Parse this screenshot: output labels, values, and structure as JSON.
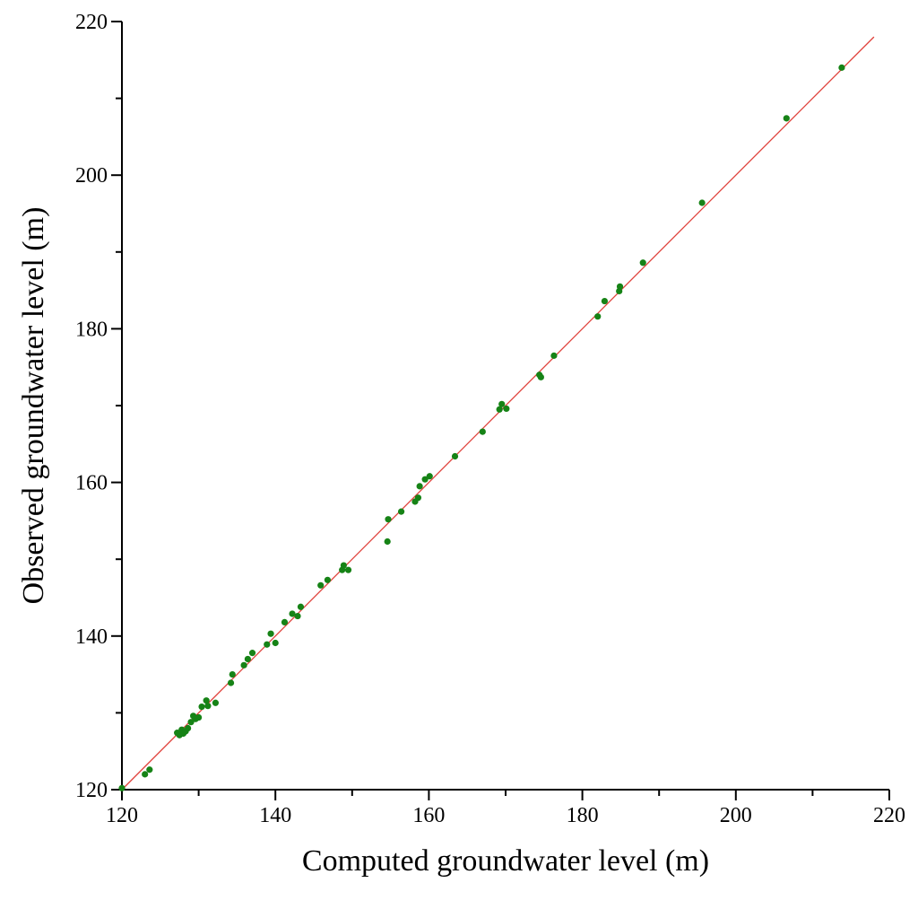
{
  "chart_data": {
    "type": "scatter",
    "title": "",
    "xlabel": "Computed groundwater level (m)",
    "ylabel": "Observed groundwater level (m)",
    "xlim": [
      120,
      220
    ],
    "ylim": [
      120,
      220
    ],
    "x_ticks": [
      "120",
      "140",
      "160",
      "180",
      "200",
      "220"
    ],
    "y_ticks": [
      "120",
      "140",
      "160",
      "180",
      "200",
      "220"
    ],
    "minor_tick_step": 10,
    "grid": false,
    "legend": "none",
    "reference_line": {
      "x": [
        120,
        218
      ],
      "y": [
        120,
        218
      ],
      "color": "#e0403a"
    },
    "point_color": "#168316",
    "series": [
      {
        "x": [
          120.0,
          123.0,
          123.6,
          127.2,
          127.5,
          127.8,
          128.0,
          128.3,
          128.6,
          129.0,
          129.3,
          129.6,
          130.0,
          130.4,
          131.0,
          131.2,
          132.2,
          134.2,
          134.4,
          135.9,
          136.4,
          137.0,
          138.9,
          139.4,
          140.0,
          141.2,
          142.2,
          142.9,
          143.3,
          145.9,
          146.8,
          148.7,
          148.9,
          149.5,
          154.6,
          154.7,
          156.4,
          158.2,
          158.6,
          158.8,
          159.5,
          160.1,
          163.4,
          167.0,
          169.2,
          169.5,
          170.1,
          174.4,
          174.6,
          176.3,
          182.0,
          182.9,
          184.8,
          184.9,
          187.9,
          195.6,
          206.6,
          213.8
        ],
        "y": [
          120.2,
          122.0,
          122.6,
          127.4,
          127.1,
          127.8,
          127.3,
          127.6,
          128.0,
          128.8,
          129.6,
          129.2,
          129.4,
          130.8,
          131.6,
          130.9,
          131.3,
          133.9,
          135.0,
          136.2,
          137.0,
          137.8,
          138.9,
          140.3,
          139.1,
          141.8,
          142.9,
          142.6,
          143.8,
          146.6,
          147.3,
          148.6,
          149.2,
          148.6,
          152.3,
          155.2,
          156.2,
          157.5,
          158.0,
          159.5,
          160.4,
          160.8,
          163.4,
          166.6,
          169.5,
          170.2,
          169.6,
          174.0,
          173.7,
          176.5,
          181.6,
          183.6,
          184.9,
          185.5,
          188.6,
          196.4,
          207.4,
          214.0
        ]
      }
    ]
  }
}
